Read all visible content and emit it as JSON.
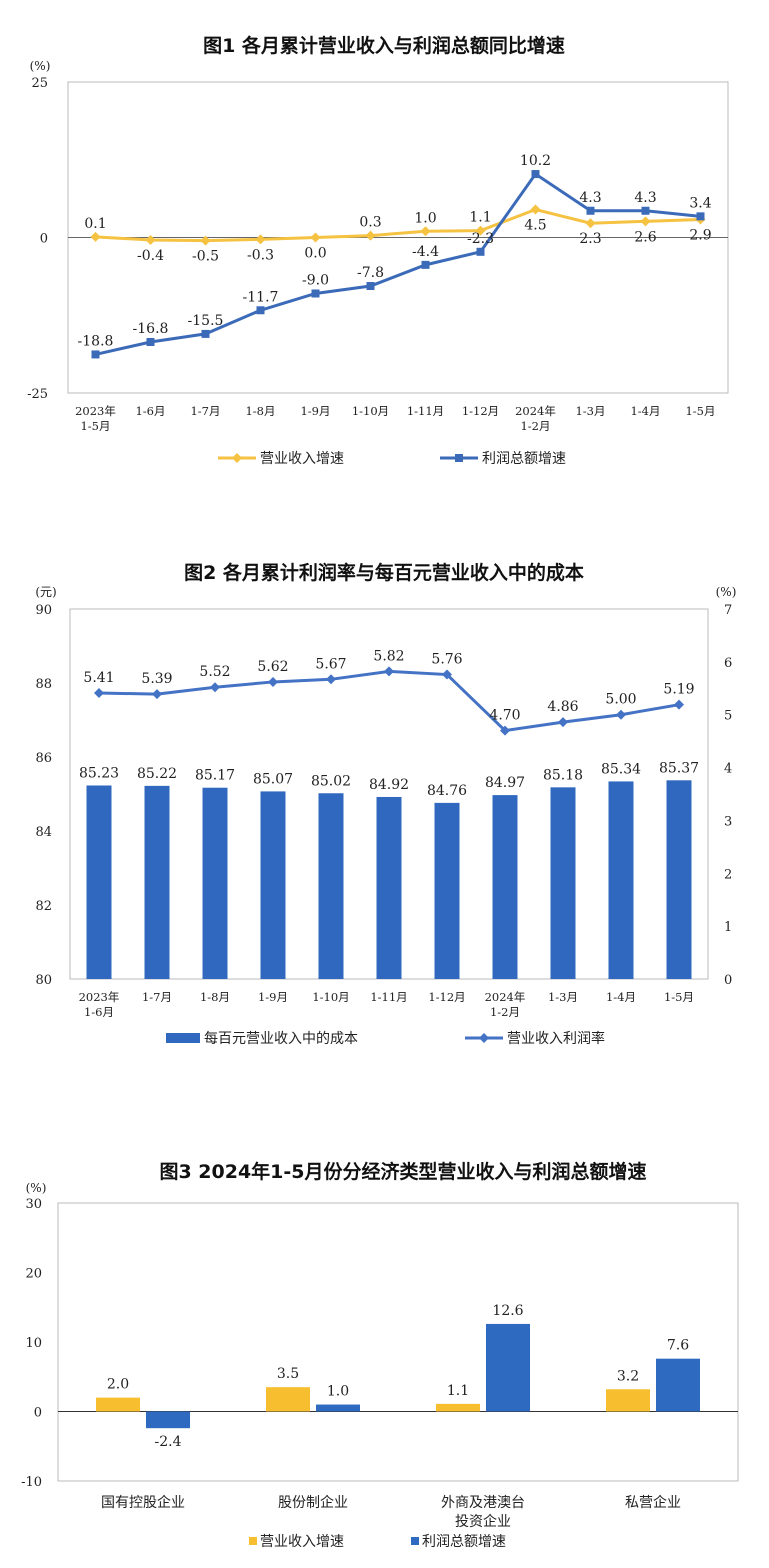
{
  "chart_data": [
    {
      "type": "line",
      "title": "图1  各月累计营业收入与利润总额同比增速",
      "unit_label": "(%)",
      "categories": [
        "2023年\n1-5月",
        "1-6月",
        "1-7月",
        "1-8月",
        "1-9月",
        "1-10月",
        "1-11月",
        "1-12月",
        "2024年\n1-2月",
        "1-3月",
        "1-4月",
        "1-5月"
      ],
      "y_ticks": [
        "25",
        "0",
        "-25"
      ],
      "ylim": [
        -25,
        25
      ],
      "series": [
        {
          "name": "营业收入增速",
          "color": "#F5C242",
          "marker": "diamond",
          "values": [
            0.1,
            -0.4,
            -0.5,
            -0.3,
            0.0,
            0.3,
            1.0,
            1.1,
            4.5,
            2.3,
            2.6,
            2.9
          ],
          "labels": [
            "0.1",
            "-0.4",
            "-0.5",
            "-0.3",
            "0.0",
            "0.3",
            "1.0",
            "1.1",
            "4.5",
            "2.3",
            "2.6",
            "2.9"
          ]
        },
        {
          "name": "利润总额增速",
          "color": "#3B6AB8",
          "marker": "square",
          "values": [
            -18.8,
            -16.8,
            -15.5,
            -11.7,
            -9.0,
            -7.8,
            -4.4,
            -2.3,
            10.2,
            4.3,
            4.3,
            3.4
          ],
          "labels": [
            "-18.8",
            "-16.8",
            "-15.5",
            "-11.7",
            "-9.0",
            "-7.8",
            "-4.4",
            "-2.3",
            "10.2",
            "4.3",
            "4.3",
            "3.4"
          ]
        }
      ],
      "legend": "bottom"
    },
    {
      "type": "bar+line",
      "title": "图2  各月累计利润率与每百元营业收入中的成本",
      "left_unit_label": "(元)",
      "right_unit_label": "(%)",
      "categories": [
        "2023年\n1-6月",
        "1-7月",
        "1-8月",
        "1-9月",
        "1-10月",
        "1-11月",
        "1-12月",
        "2024年\n1-2月",
        "1-3月",
        "1-4月",
        "1-5月"
      ],
      "left_ticks": [
        "90",
        "88",
        "86",
        "84",
        "82",
        "80"
      ],
      "right_ticks": [
        "7",
        "6",
        "5",
        "4",
        "3",
        "2",
        "1",
        "0"
      ],
      "ylim_left": [
        80,
        90
      ],
      "ylim_right": [
        0,
        7
      ],
      "bar_series": {
        "name": "每百元营业收入中的成本",
        "color": "#2F68BE",
        "values": [
          85.23,
          85.22,
          85.17,
          85.07,
          85.02,
          84.92,
          84.76,
          84.97,
          85.18,
          85.34,
          85.37
        ],
        "labels": [
          "85.23",
          "85.22",
          "85.17",
          "85.07",
          "85.02",
          "84.92",
          "84.76",
          "84.97",
          "85.18",
          "85.34",
          "85.37"
        ]
      },
      "line_series": {
        "name": "营业收入利润率",
        "color": "#4472C4",
        "marker": "diamond",
        "values": [
          5.41,
          5.39,
          5.52,
          5.62,
          5.67,
          5.82,
          5.76,
          4.7,
          4.86,
          5.0,
          5.19
        ],
        "labels": [
          "5.41",
          "5.39",
          "5.52",
          "5.62",
          "5.67",
          "5.82",
          "5.76",
          "4.70",
          "4.86",
          "5.00",
          "5.19"
        ]
      },
      "legend": "bottom"
    },
    {
      "type": "bar",
      "title": "图3  2024年1-5月份分经济类型营业收入与利润总额增速",
      "unit_label": "(%)",
      "categories": [
        "国有控股企业",
        "股份制企业",
        "外商及港澳台\n投资企业",
        "私营企业"
      ],
      "y_ticks": [
        "30",
        "20",
        "10",
        "0",
        "-10"
      ],
      "ylim": [
        -10,
        30
      ],
      "series": [
        {
          "name": "营业收入增速",
          "color": "#F7BE2F",
          "values": [
            2.0,
            3.5,
            1.1,
            3.2
          ],
          "labels": [
            "2.0",
            "3.5",
            "1.1",
            "3.2"
          ]
        },
        {
          "name": "利润总额增速",
          "color": "#2E6BC0",
          "values": [
            -2.4,
            1.0,
            12.6,
            7.6
          ],
          "labels": [
            "-2.4",
            "1.0",
            "12.6",
            "7.6"
          ]
        }
      ],
      "legend": "bottom"
    }
  ]
}
